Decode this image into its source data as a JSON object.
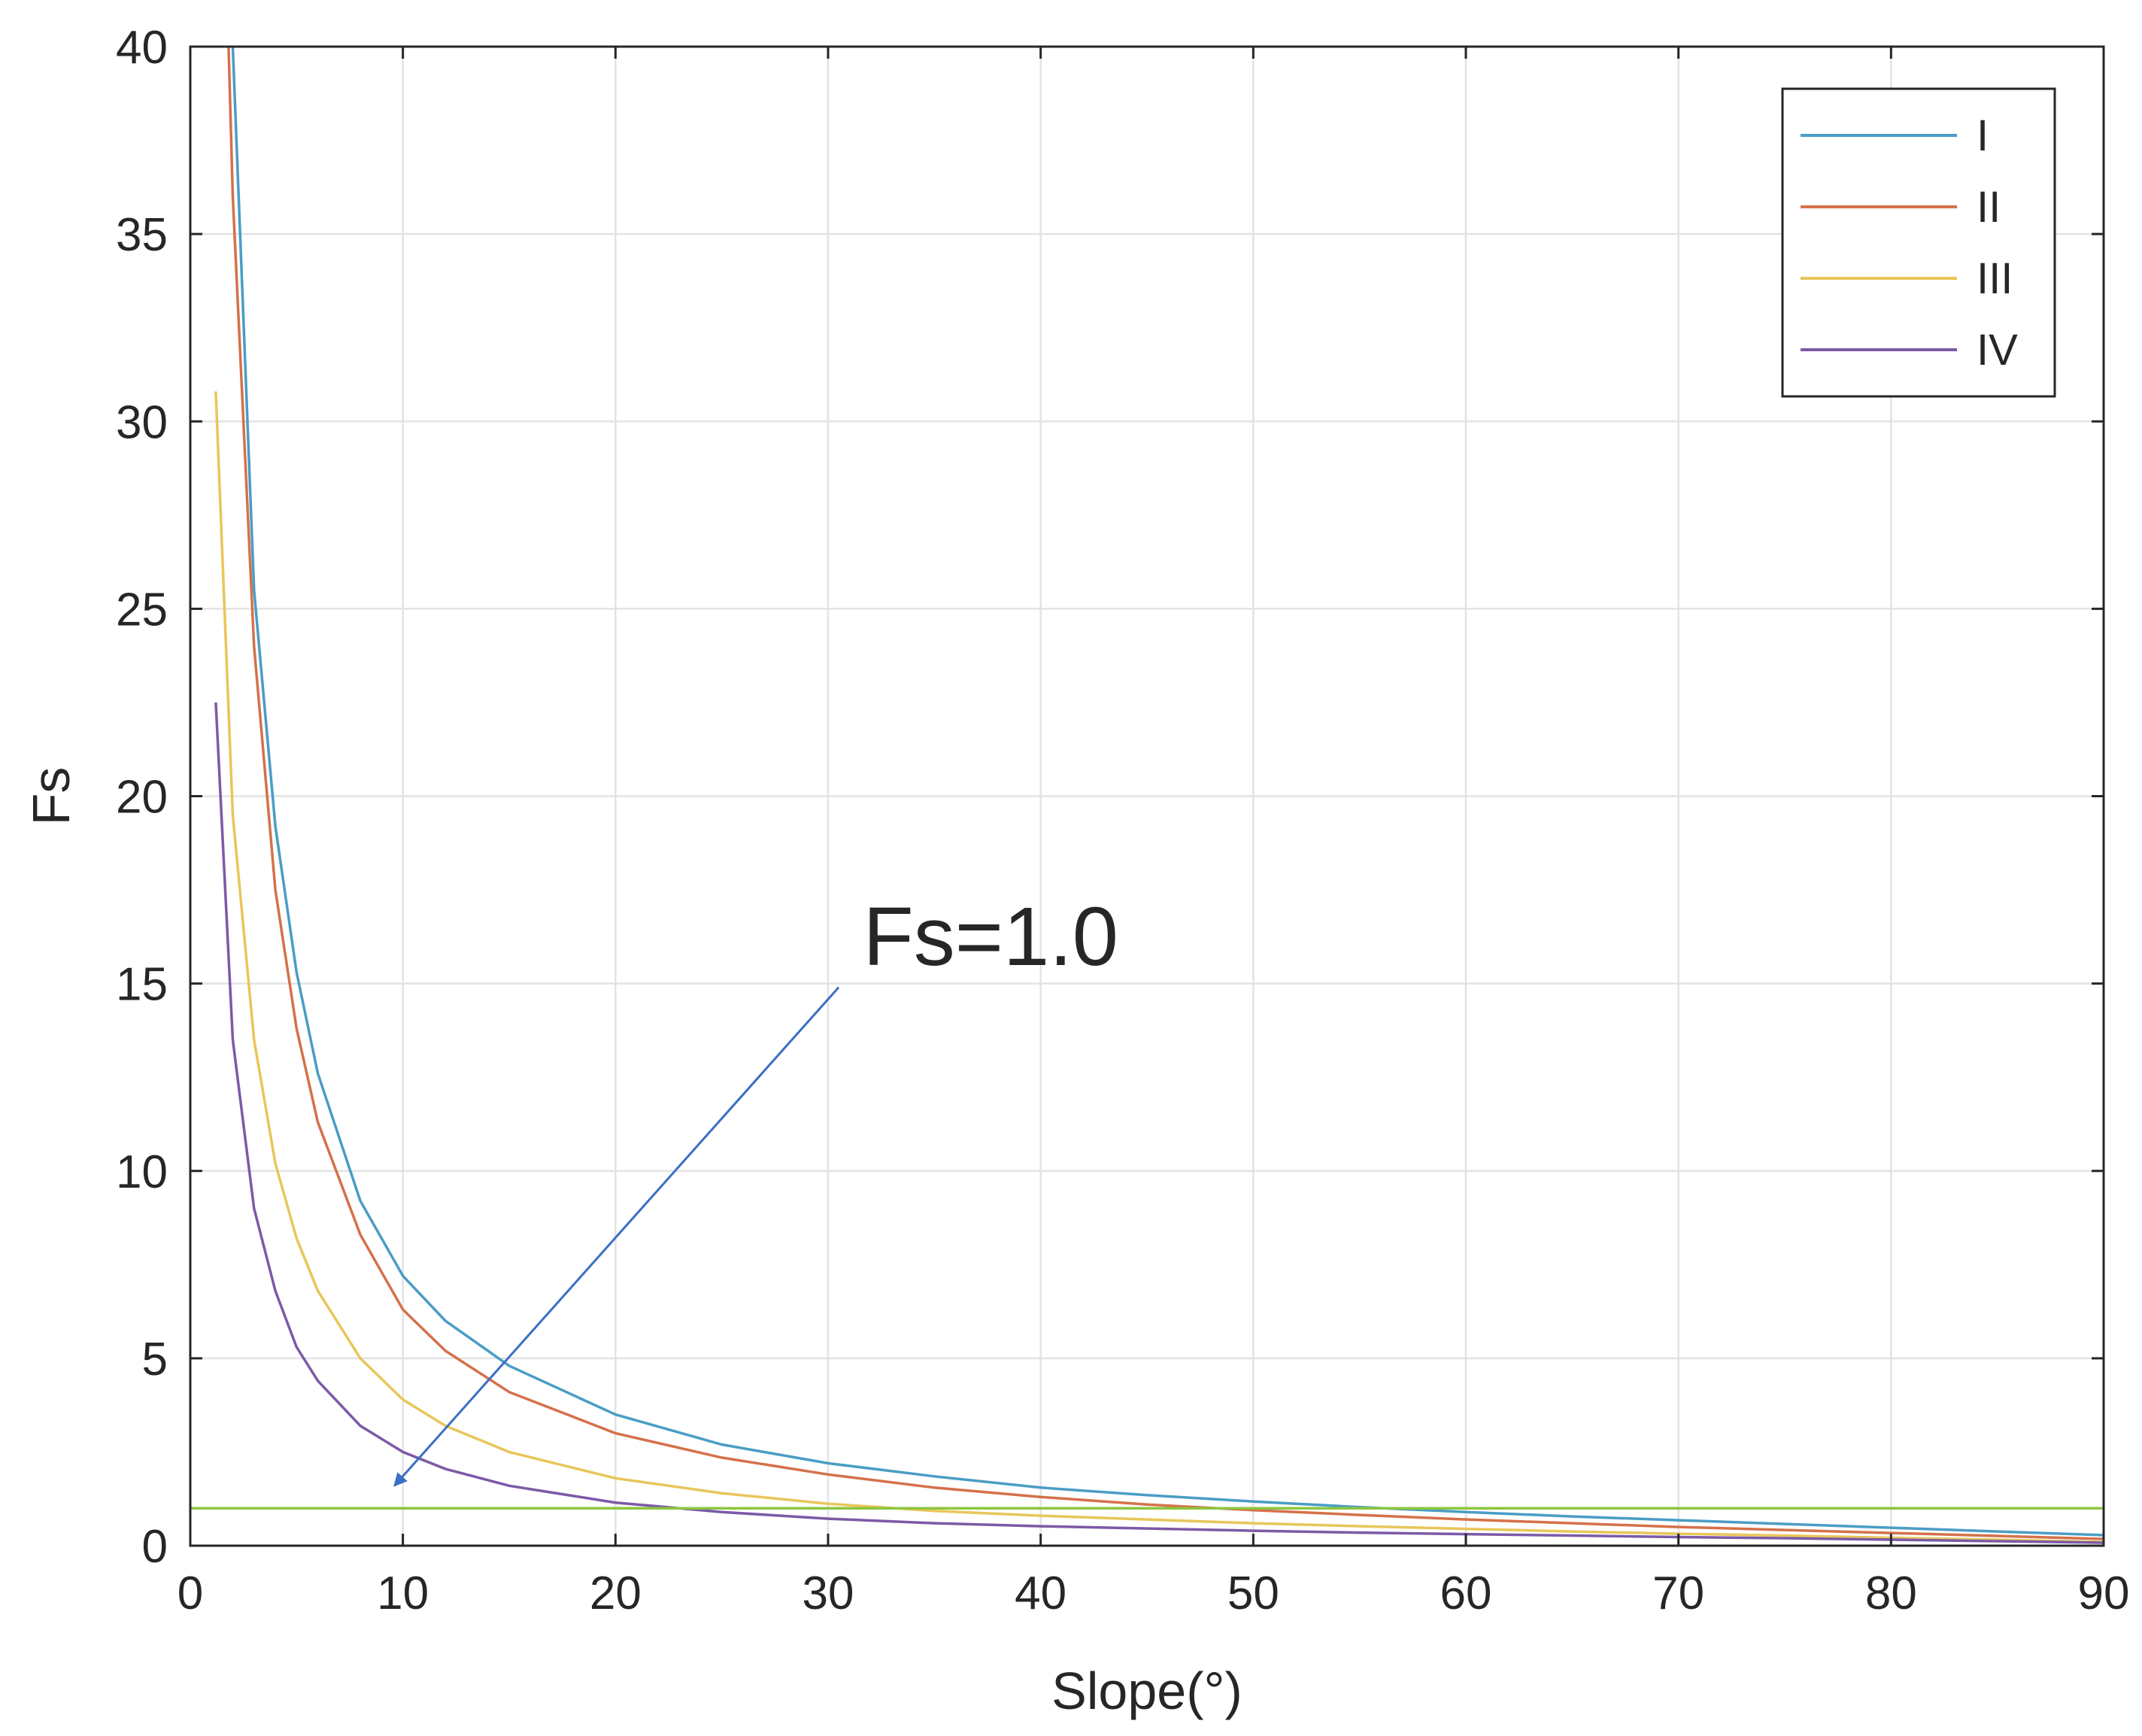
{
  "chart_data": {
    "type": "line",
    "title": "",
    "xlabel": "Slope(°)",
    "ylabel": "Fs",
    "xlim": [
      0,
      90
    ],
    "ylim": [
      0,
      40
    ],
    "xticks": [
      0,
      10,
      20,
      30,
      40,
      50,
      60,
      70,
      80,
      90
    ],
    "yticks": [
      0,
      5,
      10,
      15,
      20,
      25,
      30,
      35,
      40
    ],
    "grid": true,
    "legend_position": "top-right",
    "series": [
      {
        "name": "I",
        "color": "#4a9dc4",
        "x": [
          2,
          3,
          4,
          5,
          6,
          8,
          10,
          12,
          15,
          20,
          25,
          30,
          35,
          40,
          45,
          50,
          55,
          60,
          65,
          70,
          75,
          80,
          85,
          90
        ],
        "y": [
          40,
          25.5,
          19.2,
          15.3,
          12.6,
          9.2,
          7.2,
          6.0,
          4.8,
          3.5,
          2.7,
          2.2,
          1.85,
          1.55,
          1.35,
          1.18,
          1.03,
          0.9,
          0.78,
          0.68,
          0.58,
          0.48,
          0.38,
          0.28
        ]
      },
      {
        "name": "II",
        "color": "#d4714a",
        "x": [
          1.8,
          2,
          3,
          4,
          5,
          6,
          8,
          10,
          12,
          15,
          20,
          25,
          30,
          35,
          40,
          45,
          50,
          55,
          60,
          65,
          70,
          75,
          80,
          85,
          90
        ],
        "y": [
          40,
          36,
          24,
          17.5,
          13.8,
          11.3,
          8.3,
          6.3,
          5.2,
          4.1,
          3.0,
          2.35,
          1.9,
          1.55,
          1.3,
          1.1,
          0.95,
          0.82,
          0.7,
          0.6,
          0.5,
          0.42,
          0.34,
          0.26,
          0.18
        ]
      },
      {
        "name": "III",
        "color": "#e8c65a",
        "x": [
          1.2,
          2,
          3,
          4,
          5,
          6,
          8,
          10,
          12,
          15,
          20,
          25,
          30,
          35,
          40,
          45,
          50,
          55,
          60,
          65,
          70,
          75,
          80,
          85,
          90
        ],
        "y": [
          30.8,
          19.5,
          13.5,
          10.2,
          8.2,
          6.8,
          5.0,
          3.9,
          3.2,
          2.5,
          1.8,
          1.4,
          1.12,
          0.93,
          0.8,
          0.7,
          0.6,
          0.52,
          0.45,
          0.38,
          0.32,
          0.27,
          0.21,
          0.16,
          0.1
        ]
      },
      {
        "name": "IV",
        "color": "#7b5aa6",
        "x": [
          1.2,
          2,
          3,
          4,
          5,
          6,
          8,
          10,
          12,
          15,
          20,
          25,
          30,
          35,
          40,
          45,
          50,
          55,
          60,
          65,
          70,
          75,
          80,
          85,
          90
        ],
        "y": [
          22.5,
          13.5,
          9.0,
          6.8,
          5.3,
          4.4,
          3.2,
          2.5,
          2.05,
          1.6,
          1.15,
          0.9,
          0.72,
          0.6,
          0.52,
          0.46,
          0.4,
          0.35,
          0.31,
          0.27,
          0.23,
          0.2,
          0.16,
          0.12,
          0.08
        ]
      },
      {
        "color": "#8cc63f",
        "x": [
          0,
          90
        ],
        "y": [
          1.0,
          1.0
        ]
      }
    ],
    "annotation": {
      "text": "Fs=1.0",
      "text_x": 32,
      "text_y": 16,
      "arrow_from": [
        30.5,
        14.9
      ],
      "arrow_to": [
        9.6,
        1.6
      ],
      "arrow_color": "#3b6fc4"
    }
  }
}
